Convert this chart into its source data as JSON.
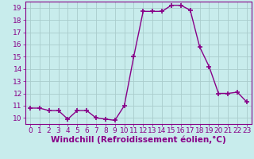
{
  "x": [
    0,
    1,
    2,
    3,
    4,
    5,
    6,
    7,
    8,
    9,
    10,
    11,
    12,
    13,
    14,
    15,
    16,
    17,
    18,
    19,
    20,
    21,
    22,
    23
  ],
  "y": [
    10.8,
    10.8,
    10.6,
    10.6,
    9.9,
    10.6,
    10.6,
    10.0,
    9.9,
    9.8,
    11.0,
    15.0,
    18.7,
    18.7,
    18.7,
    19.2,
    19.2,
    18.8,
    15.8,
    14.2,
    12.0,
    12.0,
    12.1,
    11.3
  ],
  "line_color": "#880088",
  "marker": "+",
  "markersize": 4,
  "markeredgewidth": 1.2,
  "linewidth": 1.0,
  "xlabel": "Windchill (Refroidissement éolien,°C)",
  "xlabel_fontsize": 7.5,
  "background_color": "#c8ecec",
  "grid_color": "#aacccc",
  "ylim": [
    9.5,
    19.5
  ],
  "xlim": [
    -0.5,
    23.5
  ],
  "yticks": [
    10,
    11,
    12,
    13,
    14,
    15,
    16,
    17,
    18,
    19
  ],
  "xticks": [
    0,
    1,
    2,
    3,
    4,
    5,
    6,
    7,
    8,
    9,
    10,
    11,
    12,
    13,
    14,
    15,
    16,
    17,
    18,
    19,
    20,
    21,
    22,
    23
  ],
  "tick_fontsize": 6.5,
  "tick_color": "#880088",
  "label_color": "#880088",
  "spine_color": "#880088"
}
